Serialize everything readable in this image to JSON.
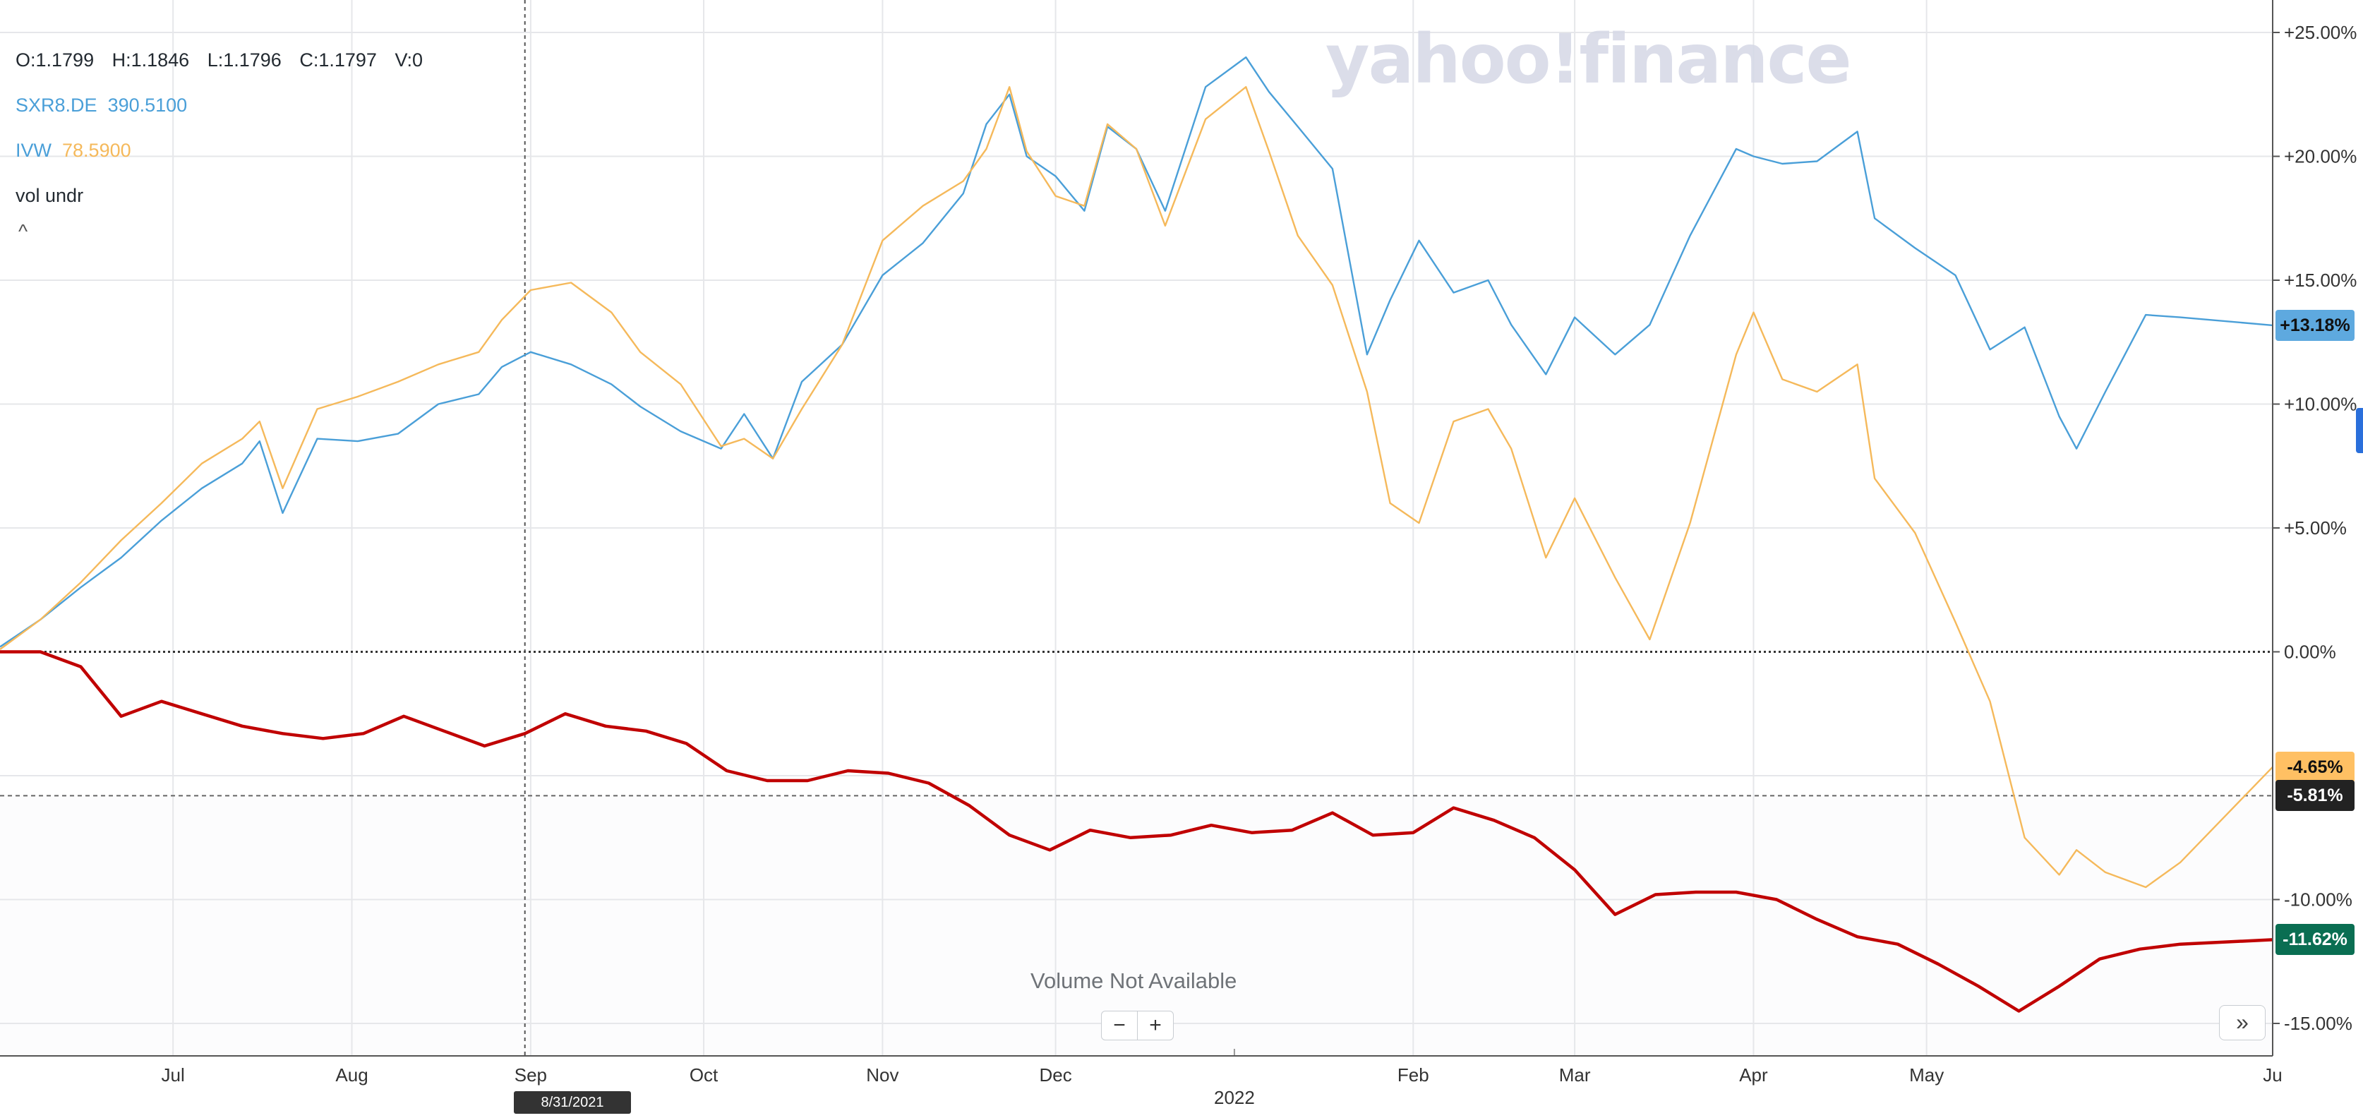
{
  "legend": {
    "ohlc": {
      "open": "O:1.1799",
      "high": "H:1.1846",
      "low": "L:1.1796",
      "close": "C:1.1797",
      "volume": "V:0"
    },
    "series": [
      {
        "symbol": "SXR8.DE",
        "value": "390.5100",
        "color": "#4a9fd8"
      },
      {
        "symbol": "IVW",
        "value": "78.5900",
        "color": "#f5b95b"
      },
      {
        "symbol": "vol undr",
        "value": "",
        "color": "#232a31"
      }
    ],
    "collapse_label": "^"
  },
  "watermark": "yahoo!finance",
  "volume_note": "Volume Not Available",
  "zoom": {
    "minus": "−",
    "plus": "+"
  },
  "expand_label": "»",
  "crosshair_date": "8/31/2021",
  "colors": {
    "sxr8": "#4a9fd8",
    "ivw": "#f5b95b",
    "main": "#c00000",
    "badge_sxr8": "#5ea9df",
    "badge_ivw": "#ffc063",
    "badge_current": "#222222",
    "badge_main": "#0a6e52",
    "grid": "#e6e7ea",
    "side_tab": "#2a6fdb"
  },
  "chart_data": {
    "type": "line",
    "x_labels": [
      "Jul",
      "Aug",
      "Sep",
      "Oct",
      "Nov",
      "Dec",
      "2022",
      "Feb",
      "Mar",
      "Apr",
      "May",
      "Ju"
    ],
    "y_ticks": [
      "+25.00%",
      "+20.00%",
      "+15.00%",
      "+10.00%",
      "+5.00%",
      "0.00%",
      "-10.00%",
      "-15.00%"
    ],
    "ylim": [
      -15.5,
      25.5
    ],
    "x_domain": [
      "2021-06-01",
      "2022-06-30"
    ],
    "series": [
      {
        "name": "SXR8.DE",
        "color": "#4a9fd8",
        "last_label": "+13.18%",
        "points": [
          [
            "2021-06-01",
            0.2
          ],
          [
            "2021-06-08",
            1.3
          ],
          [
            "2021-06-15",
            2.6
          ],
          [
            "2021-06-22",
            3.8
          ],
          [
            "2021-06-29",
            5.3
          ],
          [
            "2021-07-06",
            6.6
          ],
          [
            "2021-07-13",
            7.6
          ],
          [
            "2021-07-16",
            8.5
          ],
          [
            "2021-07-20",
            5.6
          ],
          [
            "2021-07-26",
            8.6
          ],
          [
            "2021-08-02",
            8.5
          ],
          [
            "2021-08-09",
            8.8
          ],
          [
            "2021-08-16",
            10.0
          ],
          [
            "2021-08-23",
            10.4
          ],
          [
            "2021-08-27",
            11.5
          ],
          [
            "2021-09-01",
            12.1
          ],
          [
            "2021-09-08",
            11.6
          ],
          [
            "2021-09-15",
            10.8
          ],
          [
            "2021-09-20",
            9.9
          ],
          [
            "2021-09-27",
            8.9
          ],
          [
            "2021-10-04",
            8.2
          ],
          [
            "2021-10-08",
            9.6
          ],
          [
            "2021-10-13",
            7.8
          ],
          [
            "2021-10-18",
            10.9
          ],
          [
            "2021-10-25",
            12.4
          ],
          [
            "2021-11-01",
            15.2
          ],
          [
            "2021-11-08",
            16.5
          ],
          [
            "2021-11-15",
            18.5
          ],
          [
            "2021-11-19",
            21.3
          ],
          [
            "2021-11-23",
            22.5
          ],
          [
            "2021-11-26",
            20.0
          ],
          [
            "2021-12-01",
            19.2
          ],
          [
            "2021-12-06",
            17.8
          ],
          [
            "2021-12-10",
            21.2
          ],
          [
            "2021-12-15",
            20.3
          ],
          [
            "2021-12-20",
            17.8
          ],
          [
            "2021-12-27",
            22.8
          ],
          [
            "2022-01-03",
            24.0
          ],
          [
            "2022-01-07",
            22.6
          ],
          [
            "2022-01-12",
            21.2
          ],
          [
            "2022-01-18",
            19.5
          ],
          [
            "2022-01-24",
            12.0
          ],
          [
            "2022-01-28",
            14.2
          ],
          [
            "2022-02-02",
            16.6
          ],
          [
            "2022-02-08",
            14.5
          ],
          [
            "2022-02-14",
            15.0
          ],
          [
            "2022-02-18",
            13.2
          ],
          [
            "2022-02-24",
            11.2
          ],
          [
            "2022-03-01",
            13.5
          ],
          [
            "2022-03-08",
            12.0
          ],
          [
            "2022-03-14",
            13.2
          ],
          [
            "2022-03-21",
            16.8
          ],
          [
            "2022-03-29",
            20.3
          ],
          [
            "2022-04-01",
            20.0
          ],
          [
            "2022-04-06",
            19.7
          ],
          [
            "2022-04-12",
            19.8
          ],
          [
            "2022-04-19",
            21.0
          ],
          [
            "2022-04-22",
            17.5
          ],
          [
            "2022-04-29",
            16.3
          ],
          [
            "2022-05-06",
            15.2
          ],
          [
            "2022-05-12",
            12.2
          ],
          [
            "2022-05-18",
            13.1
          ],
          [
            "2022-05-24",
            9.5
          ],
          [
            "2022-05-27",
            8.2
          ],
          [
            "2022-06-01",
            10.5
          ],
          [
            "2022-06-08",
            13.6
          ],
          [
            "2022-06-14",
            13.5
          ],
          [
            "2022-06-30",
            13.18
          ]
        ]
      },
      {
        "name": "IVW",
        "color": "#f5b95b",
        "last_label": "-4.65%",
        "points": [
          [
            "2021-06-01",
            0.1
          ],
          [
            "2021-06-08",
            1.3
          ],
          [
            "2021-06-15",
            2.8
          ],
          [
            "2021-06-22",
            4.5
          ],
          [
            "2021-06-29",
            6.0
          ],
          [
            "2021-07-06",
            7.6
          ],
          [
            "2021-07-13",
            8.6
          ],
          [
            "2021-07-16",
            9.3
          ],
          [
            "2021-07-20",
            6.6
          ],
          [
            "2021-07-26",
            9.8
          ],
          [
            "2021-08-02",
            10.3
          ],
          [
            "2021-08-09",
            10.9
          ],
          [
            "2021-08-16",
            11.6
          ],
          [
            "2021-08-23",
            12.1
          ],
          [
            "2021-08-27",
            13.4
          ],
          [
            "2021-09-01",
            14.6
          ],
          [
            "2021-09-08",
            14.9
          ],
          [
            "2021-09-15",
            13.7
          ],
          [
            "2021-09-20",
            12.1
          ],
          [
            "2021-09-27",
            10.8
          ],
          [
            "2021-10-04",
            8.3
          ],
          [
            "2021-10-08",
            8.6
          ],
          [
            "2021-10-13",
            7.8
          ],
          [
            "2021-10-18",
            9.8
          ],
          [
            "2021-10-25",
            12.4
          ],
          [
            "2021-11-01",
            16.6
          ],
          [
            "2021-11-08",
            18.0
          ],
          [
            "2021-11-15",
            19.0
          ],
          [
            "2021-11-19",
            20.3
          ],
          [
            "2021-11-23",
            22.8
          ],
          [
            "2021-11-26",
            20.2
          ],
          [
            "2021-12-01",
            18.4
          ],
          [
            "2021-12-06",
            18.0
          ],
          [
            "2021-12-10",
            21.3
          ],
          [
            "2021-12-15",
            20.3
          ],
          [
            "2021-12-20",
            17.2
          ],
          [
            "2021-12-27",
            21.5
          ],
          [
            "2022-01-03",
            22.8
          ],
          [
            "2022-01-07",
            20.2
          ],
          [
            "2022-01-12",
            16.8
          ],
          [
            "2022-01-18",
            14.8
          ],
          [
            "2022-01-24",
            10.5
          ],
          [
            "2022-01-28",
            6.0
          ],
          [
            "2022-02-02",
            5.2
          ],
          [
            "2022-02-08",
            9.3
          ],
          [
            "2022-02-14",
            9.8
          ],
          [
            "2022-02-18",
            8.2
          ],
          [
            "2022-02-24",
            3.8
          ],
          [
            "2022-03-01",
            6.2
          ],
          [
            "2022-03-08",
            3.0
          ],
          [
            "2022-03-14",
            0.5
          ],
          [
            "2022-03-21",
            5.2
          ],
          [
            "2022-03-29",
            12.0
          ],
          [
            "2022-04-01",
            13.7
          ],
          [
            "2022-04-06",
            11.0
          ],
          [
            "2022-04-12",
            10.5
          ],
          [
            "2022-04-19",
            11.6
          ],
          [
            "2022-04-22",
            7.0
          ],
          [
            "2022-04-29",
            4.8
          ],
          [
            "2022-05-06",
            1.2
          ],
          [
            "2022-05-12",
            -2.0
          ],
          [
            "2022-05-18",
            -7.5
          ],
          [
            "2022-05-24",
            -9.0
          ],
          [
            "2022-05-27",
            -8.0
          ],
          [
            "2022-06-01",
            -8.9
          ],
          [
            "2022-06-08",
            -9.5
          ],
          [
            "2022-06-14",
            -8.5
          ],
          [
            "2022-06-30",
            -4.65
          ]
        ]
      },
      {
        "name": "vol undr",
        "color": "#c00000",
        "last_label": "-11.62%",
        "points": [
          [
            "2021-06-01",
            0.0
          ],
          [
            "2021-06-08",
            0.0
          ],
          [
            "2021-06-15",
            -0.6
          ],
          [
            "2021-06-22",
            -2.6
          ],
          [
            "2021-06-29",
            -2.0
          ],
          [
            "2021-07-06",
            -2.5
          ],
          [
            "2021-07-13",
            -3.0
          ],
          [
            "2021-07-20",
            -3.3
          ],
          [
            "2021-07-27",
            -3.5
          ],
          [
            "2021-08-03",
            -3.3
          ],
          [
            "2021-08-10",
            -2.6
          ],
          [
            "2021-08-17",
            -3.2
          ],
          [
            "2021-08-24",
            -3.8
          ],
          [
            "2021-08-31",
            -3.3
          ],
          [
            "2021-09-07",
            -2.5
          ],
          [
            "2021-09-14",
            -3.0
          ],
          [
            "2021-09-21",
            -3.2
          ],
          [
            "2021-09-28",
            -3.7
          ],
          [
            "2021-10-05",
            -4.8
          ],
          [
            "2021-10-12",
            -5.2
          ],
          [
            "2021-10-19",
            -5.2
          ],
          [
            "2021-10-26",
            -4.8
          ],
          [
            "2021-11-02",
            -4.9
          ],
          [
            "2021-11-09",
            -5.3
          ],
          [
            "2021-11-16",
            -6.2
          ],
          [
            "2021-11-23",
            -7.4
          ],
          [
            "2021-11-30",
            -8.0
          ],
          [
            "2021-12-07",
            -7.2
          ],
          [
            "2021-12-14",
            -7.5
          ],
          [
            "2021-12-21",
            -7.4
          ],
          [
            "2021-12-28",
            -7.0
          ],
          [
            "2022-01-04",
            -7.3
          ],
          [
            "2022-01-11",
            -7.2
          ],
          [
            "2022-01-18",
            -6.5
          ],
          [
            "2022-01-25",
            -7.4
          ],
          [
            "2022-02-01",
            -7.3
          ],
          [
            "2022-02-08",
            -6.3
          ],
          [
            "2022-02-15",
            -6.8
          ],
          [
            "2022-02-22",
            -7.5
          ],
          [
            "2022-03-01",
            -8.8
          ],
          [
            "2022-03-08",
            -10.6
          ],
          [
            "2022-03-15",
            -9.8
          ],
          [
            "2022-03-22",
            -9.7
          ],
          [
            "2022-03-29",
            -9.7
          ],
          [
            "2022-04-05",
            -10.0
          ],
          [
            "2022-04-12",
            -10.8
          ],
          [
            "2022-04-19",
            -11.5
          ],
          [
            "2022-04-26",
            -11.8
          ],
          [
            "2022-05-03",
            -12.6
          ],
          [
            "2022-05-10",
            -13.5
          ],
          [
            "2022-05-17",
            -14.5
          ],
          [
            "2022-05-24",
            -13.5
          ],
          [
            "2022-05-31",
            -12.4
          ],
          [
            "2022-06-07",
            -12.0
          ],
          [
            "2022-06-14",
            -11.8
          ],
          [
            "2022-06-30",
            -11.62
          ]
        ]
      }
    ],
    "reference_lines": [
      {
        "label": "0.00%",
        "value": 0
      },
      {
        "label": "-5.81%",
        "value": -5.81
      }
    ],
    "crosshair": {
      "date": "2021-08-31"
    },
    "grid": true
  }
}
